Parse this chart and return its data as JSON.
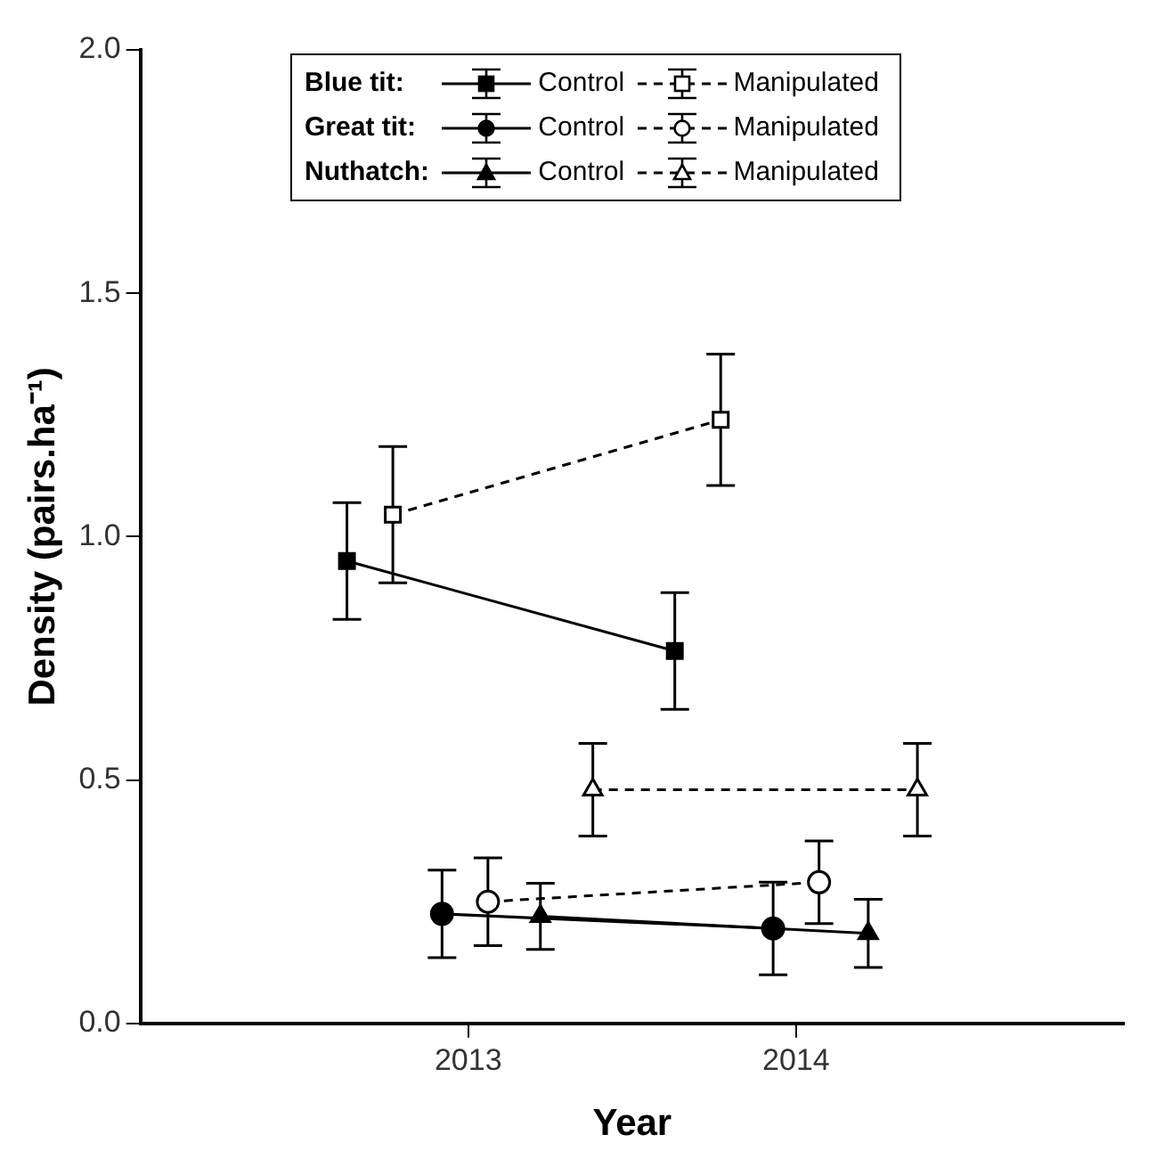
{
  "chart_data": {
    "type": "line",
    "xlabel": "Year",
    "ylabel": "Density (pairs.ha⁻¹)",
    "xlim": [
      2012,
      2015
    ],
    "ylim": [
      0,
      2
    ],
    "xticks": [
      2013,
      2014
    ],
    "yticks": [
      {
        "value": 0,
        "label": "0.0"
      },
      {
        "value": 0.5,
        "label": "0.5"
      },
      {
        "value": 1,
        "label": "1.0"
      },
      {
        "value": 1.5,
        "label": "1.5"
      },
      {
        "value": 2,
        "label": "2.0"
      }
    ],
    "grid": false,
    "legend": "top",
    "annotations": [
      "Blue tit:",
      "Great tit:",
      "Nuthatch:"
    ],
    "series": [
      {
        "name": "Control",
        "color": "#000000",
        "marker": "square",
        "line_style": "solid",
        "x": [
          2012.63,
          2013.63
        ],
        "values": [
          0.95,
          0.765
        ],
        "errors": [
          0.12,
          0.12
        ]
      },
      {
        "name": "Manipulated",
        "color": "#000000",
        "marker": "square",
        "line_style": "dashed",
        "x": [
          2012.77,
          2013.77
        ],
        "values": [
          1.045,
          1.24
        ],
        "errors": [
          0.14,
          0.135
        ]
      },
      {
        "name": "Control",
        "color": "#000000",
        "marker": "circle",
        "line_style": "solid",
        "x": [
          2012.92,
          2013.93
        ],
        "values": [
          0.225,
          0.195
        ],
        "errors": [
          0.09,
          0.095
        ]
      },
      {
        "name": "Manipulated",
        "color": "#000000",
        "marker": "circle",
        "line_style": "dashed",
        "x": [
          2013.06,
          2014.07
        ],
        "values": [
          0.25,
          0.29
        ],
        "errors": [
          0.09,
          0.085
        ]
      },
      {
        "name": "Control",
        "color": "#000000",
        "marker": "triangle",
        "line_style": "solid",
        "x": [
          2013.22,
          2014.22
        ],
        "values": [
          0.22,
          0.185
        ],
        "errors": [
          0.068,
          0.07
        ]
      },
      {
        "name": "Manipulated",
        "color": "#000000",
        "marker": "triangle",
        "line_style": "dashed",
        "x": [
          2013.38,
          2014.37
        ],
        "values": [
          0.48,
          0.48
        ],
        "errors": [
          0.095,
          0.095
        ]
      }
    ]
  }
}
